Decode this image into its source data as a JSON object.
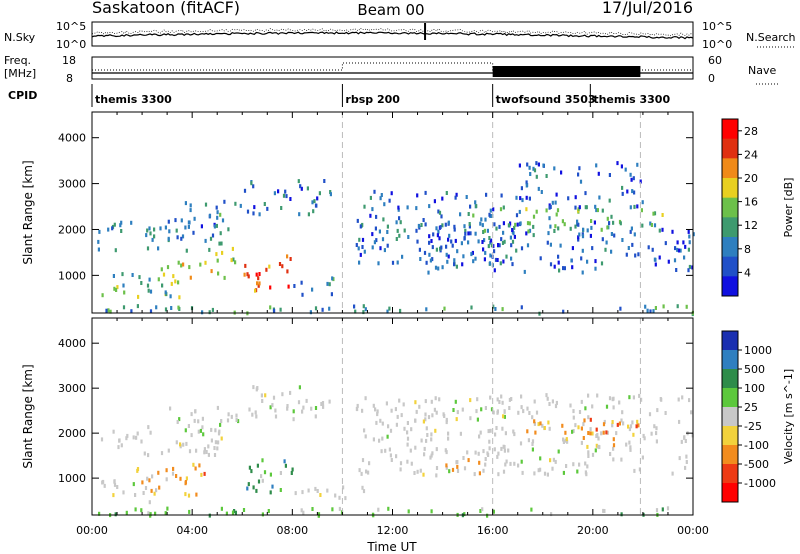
{
  "header": {
    "station": "Saskatoon (fitACF)",
    "beam": "Beam 00",
    "date": "17/Jul/2016"
  },
  "strips": {
    "nsky_label": "N.Sky",
    "nsky_top": "10^5",
    "nsky_bottom": "10^0",
    "nsearch_label": "N.Search",
    "nsearch_top": "10^5",
    "nsearch_bottom": "10^0",
    "freq_label_1": "Freq.",
    "freq_label_2": "[MHz]",
    "freq_top": "18",
    "freq_bottom": "8",
    "nave_label": "Nave",
    "nave_top": "60",
    "nave_bottom": "0",
    "cpid_label": "CPID"
  },
  "cpid_segments": [
    {
      "label": "themis 3300",
      "start_h": 0
    },
    {
      "label": "rbsp 200",
      "start_h": 10
    },
    {
      "label": "twofsound 3503",
      "start_h": 16
    },
    {
      "label": "themis 3300",
      "start_h": 19.9
    }
  ],
  "chart_data": [
    {
      "type": "heatmap",
      "title": "",
      "xlabel": "Time UT",
      "ylabel": "Slant Range [km]",
      "xlim_hours": [
        0,
        24
      ],
      "xticks": [
        "00:00",
        "04:00",
        "08:00",
        "12:00",
        "16:00",
        "20:00",
        "00:00"
      ],
      "ylim_km": [
        180,
        4560
      ],
      "yticks": [
        "1000",
        "2000",
        "3000",
        "4000"
      ],
      "colorbar": {
        "label": "Power [dB]",
        "ticks": [
          "4",
          "8",
          "12",
          "16",
          "20",
          "24",
          "28"
        ],
        "range": [
          0,
          30
        ],
        "colors": [
          "#1010e0",
          "#2050c8",
          "#2e7fbf",
          "#3e9a6f",
          "#6cc04a",
          "#e8d020",
          "#f08a18",
          "#e03010",
          "#ff0000"
        ]
      },
      "echo_regions": [
        {
          "t0": 0.0,
          "t1": 5.2,
          "r0": 1550,
          "r1": 2200,
          "level": 8
        },
        {
          "t0": 3.0,
          "t1": 6.0,
          "r0": 2000,
          "r1": 2650,
          "level": 9
        },
        {
          "t0": 6.0,
          "t1": 9.5,
          "r0": 2350,
          "r1": 3100,
          "level": 7
        },
        {
          "t0": 0.3,
          "t1": 3.5,
          "r0": 500,
          "r1": 1100,
          "level": 14
        },
        {
          "t0": 2.5,
          "t1": 4.5,
          "r0": 850,
          "r1": 1350,
          "level": 18
        },
        {
          "t0": 4.7,
          "t1": 5.7,
          "r0": 850,
          "r1": 1650,
          "level": 16
        },
        {
          "t0": 6.0,
          "t1": 8.0,
          "r0": 700,
          "r1": 1550,
          "level": 24
        },
        {
          "t0": 8.0,
          "t1": 9.8,
          "r0": 600,
          "r1": 1000,
          "level": 10
        },
        {
          "t0": 0.0,
          "t1": 24.0,
          "r0": 200,
          "r1": 380,
          "level": 10
        },
        {
          "t0": 10.5,
          "t1": 17.0,
          "r0": 1250,
          "r1": 2900,
          "level": 7
        },
        {
          "t0": 13.0,
          "t1": 24.0,
          "r0": 1100,
          "r1": 2200,
          "level": 6
        },
        {
          "t0": 15.0,
          "t1": 23.0,
          "r0": 1900,
          "r1": 2500,
          "level": 12
        },
        {
          "t0": 17.0,
          "t1": 22.0,
          "r0": 2500,
          "r1": 3500,
          "level": 6
        }
      ]
    },
    {
      "type": "heatmap",
      "title": "",
      "xlabel": "Time UT",
      "ylabel": "Slant Range [km]",
      "xlim_hours": [
        0,
        24
      ],
      "xticks": [
        "00:00",
        "04:00",
        "08:00",
        "12:00",
        "16:00",
        "20:00",
        "00:00"
      ],
      "ylim_km": [
        180,
        4560
      ],
      "yticks": [
        "1000",
        "2000",
        "3000",
        "4000"
      ],
      "colorbar": {
        "label": "Velocity [m s^-1]",
        "ticks": [
          "1000",
          "500",
          "100",
          "25",
          "-25",
          "-100",
          "-500",
          "-1000"
        ],
        "colors": [
          "#1a2fb0",
          "#2f7fc0",
          "#2e8c4a",
          "#5cc83c",
          "#c8c8c8",
          "#f2d23c",
          "#f28c1e",
          "#ee3a14",
          "#ff0000"
        ]
      },
      "echo_regions": [
        {
          "t0": 0.0,
          "t1": 5.2,
          "r0": 1550,
          "r1": 2200,
          "cls": "grey"
        },
        {
          "t0": 3.0,
          "t1": 6.0,
          "r0": 2000,
          "r1": 2650,
          "cls": "grey"
        },
        {
          "t0": 6.0,
          "t1": 9.5,
          "r0": 2350,
          "r1": 3100,
          "cls": "grey"
        },
        {
          "t0": 0.3,
          "t1": 2.5,
          "r0": 500,
          "r1": 1000,
          "cls": "grey"
        },
        {
          "t0": 1.5,
          "t1": 4.5,
          "r0": 600,
          "r1": 1350,
          "cls": "orange"
        },
        {
          "t0": 6.0,
          "t1": 8.0,
          "r0": 700,
          "r1": 1550,
          "cls": "green"
        },
        {
          "t0": 8.0,
          "t1": 11.0,
          "r0": 600,
          "r1": 950,
          "cls": "grey"
        },
        {
          "t0": 0.0,
          "t1": 24.0,
          "r0": 200,
          "r1": 380,
          "cls": "lightgreen"
        },
        {
          "t0": 10.5,
          "t1": 24.0,
          "r0": 1100,
          "r1": 2900,
          "cls": "grey"
        },
        {
          "t0": 14.0,
          "t1": 15.5,
          "r0": 1150,
          "r1": 1450,
          "cls": "orange"
        },
        {
          "t0": 17.0,
          "t1": 20.0,
          "r0": 1900,
          "r1": 2400,
          "cls": "orange"
        },
        {
          "t0": 20.0,
          "t1": 22.0,
          "r0": 1750,
          "r1": 2300,
          "cls": "orange"
        }
      ]
    }
  ]
}
